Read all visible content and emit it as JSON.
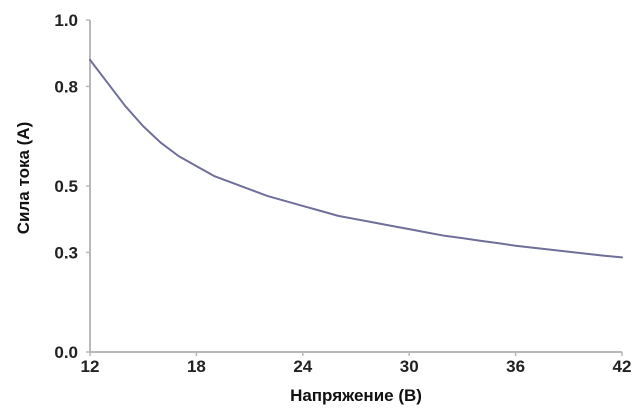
{
  "chart_data": {
    "type": "line",
    "title": "",
    "xlabel": "Напряжение (В)",
    "ylabel": "Сила тока (А)",
    "x_ticks": [
      "12",
      "18",
      "24",
      "30",
      "36",
      "42"
    ],
    "y_ticks": [
      "0.0",
      "0.3",
      "0.5",
      "0.8",
      "1.0"
    ],
    "x_tick_values": [
      12,
      18,
      24,
      30,
      36,
      42
    ],
    "y_tick_values": [
      0.0,
      0.3,
      0.5,
      0.8,
      1.0
    ],
    "xlim": [
      12,
      42
    ],
    "ylim": [
      0.0,
      1.0
    ],
    "grid": false,
    "series": [
      {
        "x": [
          12,
          13,
          14,
          15,
          16,
          17,
          18,
          19,
          20,
          21,
          22,
          23,
          24,
          25,
          26,
          27,
          28,
          29,
          30,
          31,
          32,
          33,
          34,
          35,
          36,
          37,
          38,
          39,
          40,
          41,
          42
        ],
        "values": [
          0.88,
          0.81,
          0.74,
          0.68,
          0.63,
          0.59,
          0.56,
          0.53,
          0.51,
          0.49,
          0.47,
          0.455,
          0.44,
          0.425,
          0.41,
          0.4,
          0.39,
          0.38,
          0.37,
          0.36,
          0.35,
          0.343,
          0.335,
          0.328,
          0.32,
          0.314,
          0.308,
          0.302,
          0.296,
          0.29,
          0.285
        ]
      }
    ],
    "line_color": "#6f6f99",
    "axis_color": "#b8b8b8"
  }
}
